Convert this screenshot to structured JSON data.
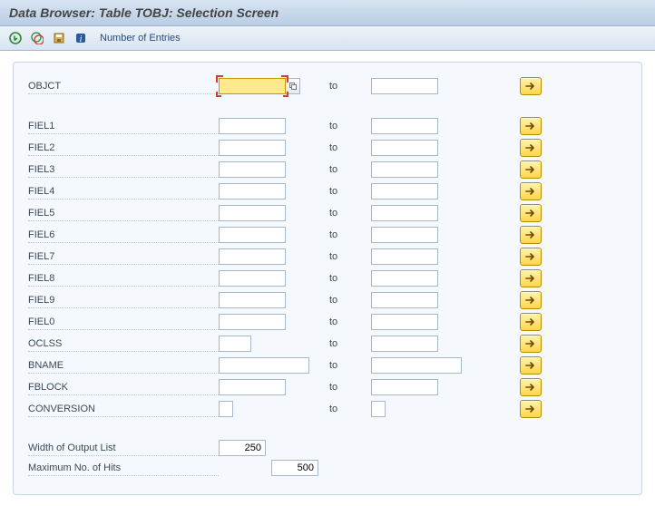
{
  "title": "Data Browser: Table TOBJ: Selection Screen",
  "toolbar": {
    "entries_label": "Number of Entries"
  },
  "to_label": "to",
  "main_field": {
    "label": "OBJCT",
    "low": "",
    "high": "",
    "low_width": 74,
    "high_width": 74
  },
  "fields": [
    {
      "label": "FIEL1",
      "low": "",
      "high": "",
      "low_width": 74,
      "high_width": 74
    },
    {
      "label": "FIEL2",
      "low": "",
      "high": "",
      "low_width": 74,
      "high_width": 74
    },
    {
      "label": "FIEL3",
      "low": "",
      "high": "",
      "low_width": 74,
      "high_width": 74
    },
    {
      "label": "FIEL4",
      "low": "",
      "high": "",
      "low_width": 74,
      "high_width": 74
    },
    {
      "label": "FIEL5",
      "low": "",
      "high": "",
      "low_width": 74,
      "high_width": 74
    },
    {
      "label": "FIEL6",
      "low": "",
      "high": "",
      "low_width": 74,
      "high_width": 74
    },
    {
      "label": "FIEL7",
      "low": "",
      "high": "",
      "low_width": 74,
      "high_width": 74
    },
    {
      "label": "FIEL8",
      "low": "",
      "high": "",
      "low_width": 74,
      "high_width": 74
    },
    {
      "label": "FIEL9",
      "low": "",
      "high": "",
      "low_width": 74,
      "high_width": 74
    },
    {
      "label": "FIEL0",
      "low": "",
      "high": "",
      "low_width": 74,
      "high_width": 74
    },
    {
      "label": "OCLSS",
      "low": "",
      "high": "",
      "low_width": 36,
      "high_width": 74
    },
    {
      "label": "BNAME",
      "low": "",
      "high": "",
      "low_width": 100,
      "high_width": 100
    },
    {
      "label": "FBLOCK",
      "low": "",
      "high": "",
      "low_width": 74,
      "high_width": 74
    },
    {
      "label": "CONVERSION",
      "low": "",
      "high": "",
      "low_width": 16,
      "high_width": 16
    }
  ],
  "footer": {
    "width_label": "Width of Output List",
    "width_value": "250",
    "max_label": "Maximum No. of Hits",
    "max_value": "500"
  },
  "colors": {
    "title_bg_top": "#d7e4f2",
    "title_bg_bot": "#b8cde4",
    "panel_bg": "#f5f8fc",
    "panel_border": "#c6d4e5",
    "input_border": "#a8b6c9",
    "focus_bg": "#ffe98f",
    "mso_bg": "#ffd64a",
    "mso_border": "#b58f00",
    "focus_corner": "#d43a2f"
  }
}
